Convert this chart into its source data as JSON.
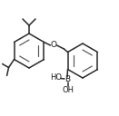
{
  "bg_color": "#ffffff",
  "line_color": "#2a2a2a",
  "inner_color": "#555555",
  "lw": 1.1,
  "inner_lw": 0.85,
  "figsize": [
    1.31,
    1.28
  ],
  "dpi": 100,
  "xlim": [
    0,
    131
  ],
  "ylim": [
    0,
    128
  ]
}
